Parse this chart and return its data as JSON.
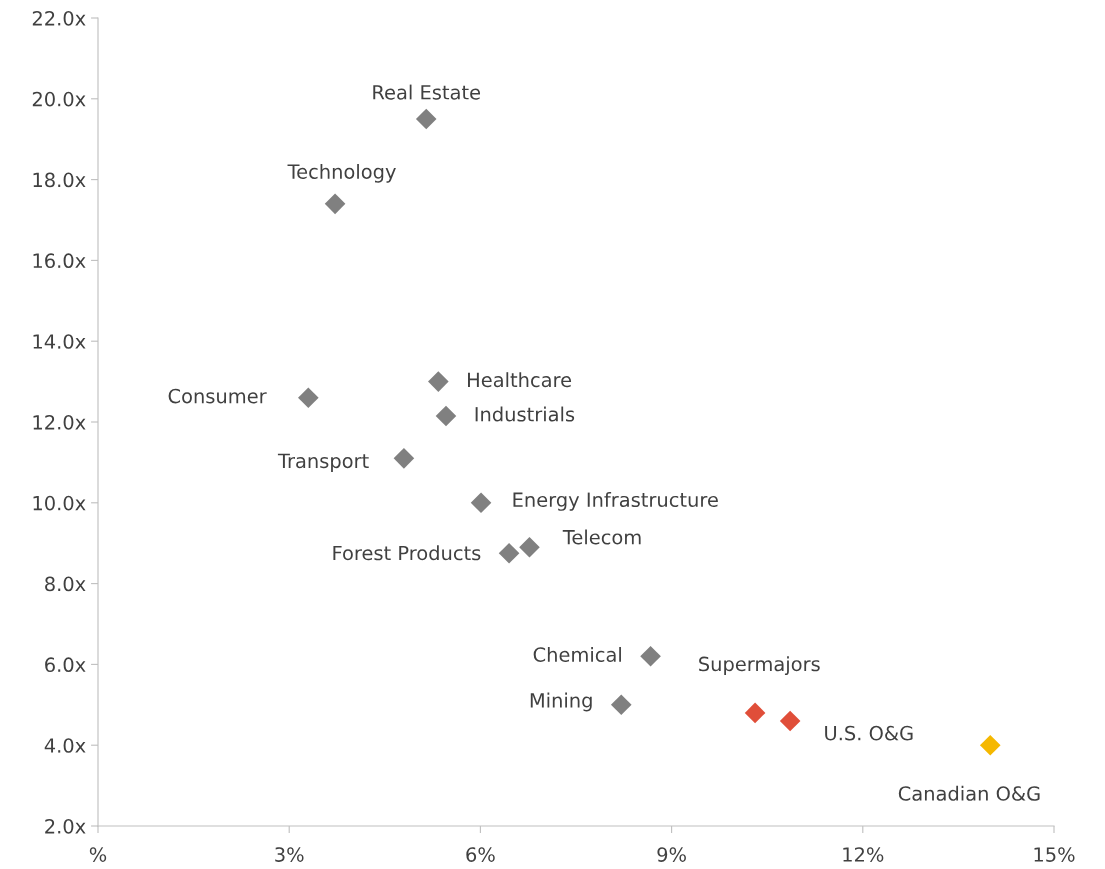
{
  "chart_data": {
    "type": "scatter",
    "marker": "diamond",
    "grid": false,
    "xlim": [
      0,
      15
    ],
    "ylim": [
      2,
      22
    ],
    "xticks": [
      {
        "value": 0,
        "label": "%"
      },
      {
        "value": 3,
        "label": "3%"
      },
      {
        "value": 6,
        "label": "6%"
      },
      {
        "value": 9,
        "label": "9%"
      },
      {
        "value": 12,
        "label": "12%"
      },
      {
        "value": 15,
        "label": "15%"
      }
    ],
    "yticks": [
      {
        "value": 2,
        "label": "2.0x"
      },
      {
        "value": 4,
        "label": "4.0x"
      },
      {
        "value": 6,
        "label": "6.0x"
      },
      {
        "value": 8,
        "label": "8.0x"
      },
      {
        "value": 10,
        "label": "10.0x"
      },
      {
        "value": 12,
        "label": "12.0x"
      },
      {
        "value": 14,
        "label": "14.0x"
      },
      {
        "value": 16,
        "label": "16.0x"
      },
      {
        "value": 18,
        "label": "18.0x"
      },
      {
        "value": 20,
        "label": "20.0x"
      },
      {
        "value": 22,
        "label": "22.0x"
      }
    ],
    "series": [
      {
        "color": "#808080",
        "x": [
          5.15,
          3.72,
          3.3,
          5.34,
          5.46,
          4.8,
          6.01,
          6.45,
          6.77,
          8.67,
          8.21
        ],
        "values": [
          19.5,
          17.4,
          12.6,
          13.0,
          12.15,
          11.1,
          10.0,
          8.75,
          8.9,
          6.2,
          5.0
        ]
      },
      {
        "color": "#e04e39",
        "x": [
          10.31,
          10.86
        ],
        "values": [
          4.8,
          4.6
        ]
      },
      {
        "color": "#f5b800",
        "x": [
          14.0
        ],
        "values": [
          4.0
        ]
      }
    ],
    "annotations": [
      {
        "text": "Real Estate",
        "x": 5.15,
        "y": 19.5
      },
      {
        "text": "Technology",
        "x": 3.72,
        "y": 17.4
      },
      {
        "text": "Consumer",
        "x": 3.3,
        "y": 12.6
      },
      {
        "text": "Healthcare",
        "x": 5.34,
        "y": 13.0
      },
      {
        "text": "Industrials",
        "x": 5.46,
        "y": 12.15
      },
      {
        "text": "Transport",
        "x": 4.8,
        "y": 11.1
      },
      {
        "text": "Energy Infrastructure",
        "x": 6.01,
        "y": 10.0
      },
      {
        "text": "Forest Products",
        "x": 6.45,
        "y": 8.75
      },
      {
        "text": "Telecom",
        "x": 6.77,
        "y": 8.9
      },
      {
        "text": "Chemical",
        "x": 8.67,
        "y": 6.2
      },
      {
        "text": "Mining",
        "x": 8.21,
        "y": 5.0
      },
      {
        "text": "Supermajors",
        "x": 10.31,
        "y": 4.8
      },
      {
        "text": "U.S. O&G",
        "x": 10.86,
        "y": 4.6
      },
      {
        "text": "Canadian O&G",
        "x": 14.0,
        "y": 4.0
      }
    ]
  }
}
